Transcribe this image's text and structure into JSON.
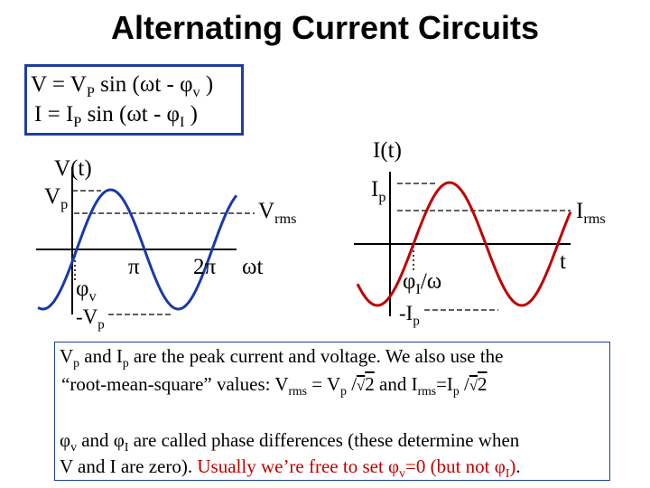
{
  "title": "Alternating Current Circuits",
  "equations": {
    "v_line": {
      "lhs": "V = ",
      "amp": "V",
      "amp_sub": "P",
      "mid": " sin (ωt - ",
      "phi": "φ",
      "phi_sub": "v",
      "end": " )"
    },
    "i_line": {
      "lhs": "I = ",
      "amp": "I",
      "amp_sub": "P",
      "mid": " sin (ωt - ",
      "phi": "φ",
      "phi_sub": "I",
      "end": " )"
    }
  },
  "left_plot": {
    "axis_label": "V(t)",
    "peak_label": "V",
    "peak_sub": "p",
    "neg_peak_label": "-V",
    "neg_peak_sub": "p",
    "rms_label": "V",
    "rms_sub": "rms",
    "phase_label": "φ",
    "phase_sub": "v",
    "tick_pi": "π",
    "tick_2pi": "2π",
    "x_label": "ωt",
    "colors": {
      "curve": "#1a3aa8",
      "axis": "#000000"
    }
  },
  "right_plot": {
    "axis_label": "I(t)",
    "peak_label": "I",
    "peak_sub": "p",
    "neg_peak_label": "-I",
    "neg_peak_sub": "p",
    "rms_label": "I",
    "rms_sub": "rms",
    "phase_label": "φ",
    "phase_sub": "I",
    "phase_tail": "/ω",
    "x_label": "t",
    "colors": {
      "curve": "#c00000",
      "axis": "#000000"
    }
  },
  "text": {
    "line1": {
      "a": "V",
      "a_sub": "p",
      "b": " and I",
      "b_sub": "p",
      "c": " are the peak current and voltage.  We also use the"
    },
    "line2": {
      "a": "“root-mean-square” values:  V",
      "a_sub": "rms",
      "b": " = V",
      "b_sub": "p",
      "c": " /",
      "sqrt": "2",
      "d": "   and I",
      "d_sub": "rms",
      "e": "=I",
      "e_sub": "p",
      "f": " /",
      "sqrt2": "2"
    },
    "line3": {
      "a": "φ",
      "a_sub": "v",
      "b": " and φ",
      "b_sub": "I",
      "c": " are called phase differences (these determine when"
    },
    "line4": {
      "a": "V and I are zero).  ",
      "red_a": "Usually we’re free to set φ",
      "red_sub": "v",
      "red_b": "=0 (but not φ",
      "red_sub2": "I",
      "red_c": ")",
      "end": "."
    }
  },
  "colors": {
    "box_border": "#1f3f9f",
    "highlight": "#c00000"
  }
}
